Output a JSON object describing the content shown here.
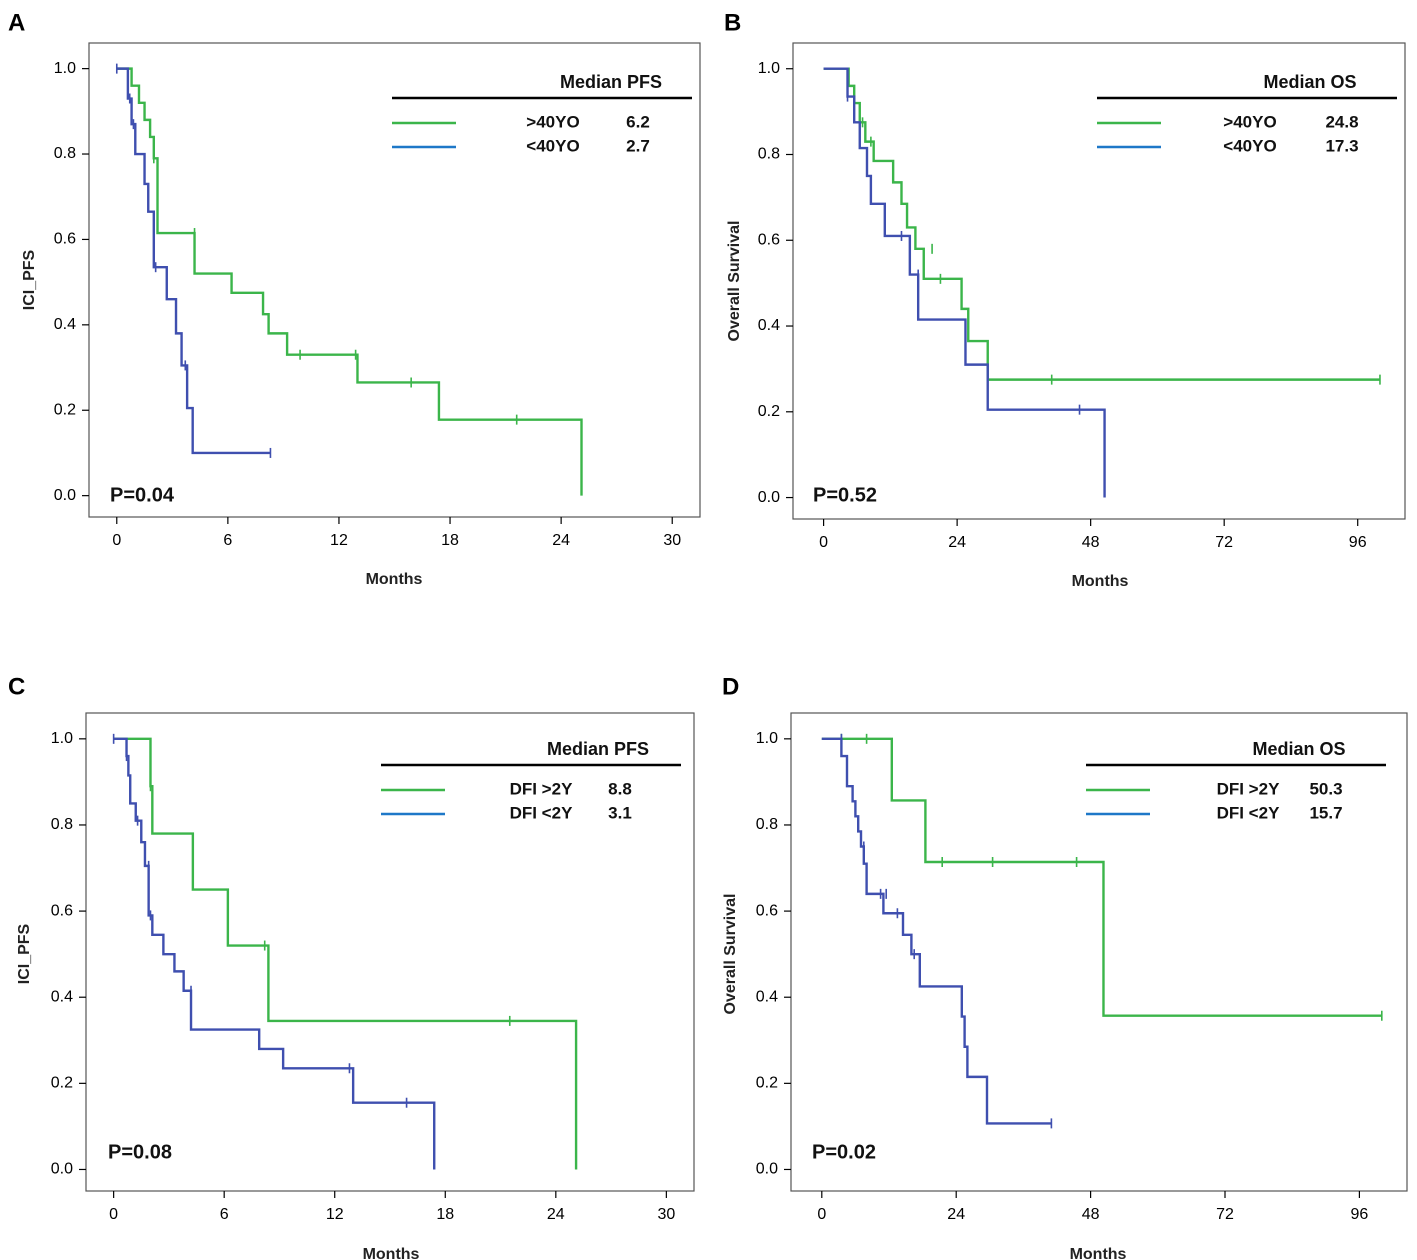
{
  "colors": {
    "group1": "#3BB54A",
    "group2": "#3F4FAF",
    "legend_group2": "#1E78C8",
    "axis": "#000000",
    "frame": "#555555"
  },
  "chart_data": [
    {
      "id": "A",
      "panel_label": "A",
      "type": "line",
      "style": "kaplan-meier step",
      "ylabel": "ICI_PFS",
      "xlabel": "Months",
      "xlim": [
        -1.5,
        31.5
      ],
      "xticks": [
        0,
        6,
        12,
        18,
        24,
        30
      ],
      "ylim": [
        -0.05,
        1.06
      ],
      "yticks": [
        "0.0",
        "0.2",
        "0.4",
        "0.6",
        "0.8",
        "1.0"
      ],
      "legend_title": "Median PFS",
      "pvalue": "P=0.04",
      "series": [
        {
          "name": ">40YO",
          "median": "6.2",
          "color_key": "group1",
          "x": [
            0,
            0.8,
            1.2,
            1.5,
            1.8,
            2.0,
            2.2,
            4.2,
            6.2,
            7.9,
            8.2,
            9.2,
            13.0,
            17.4,
            25.1
          ],
          "y": [
            1.0,
            0.96,
            0.92,
            0.88,
            0.84,
            0.79,
            0.615,
            0.52,
            0.475,
            0.425,
            0.38,
            0.33,
            0.265,
            0.178,
            0.0
          ],
          "censored": [
            [
              2.0,
              0.79
            ],
            [
              4.2,
              0.615
            ],
            [
              9.9,
              0.33
            ],
            [
              12.9,
              0.33
            ],
            [
              15.9,
              0.265
            ],
            [
              21.6,
              0.178
            ]
          ]
        },
        {
          "name": "<40YO",
          "median": "2.7",
          "color_key": "group2",
          "x": [
            0,
            0.6,
            0.8,
            1.0,
            1.5,
            1.7,
            2.0,
            2.7,
            3.2,
            3.5,
            3.8,
            4.1,
            4.2
          ],
          "y": [
            1.0,
            0.93,
            0.87,
            0.8,
            0.73,
            0.665,
            0.535,
            0.46,
            0.38,
            0.305,
            0.205,
            0.1,
            0.1
          ],
          "censored": [
            [
              0,
              1.0
            ],
            [
              0.7,
              0.93
            ],
            [
              0.9,
              0.87
            ],
            [
              2.1,
              0.535
            ],
            [
              3.7,
              0.305
            ],
            [
              8.3,
              0.1
            ]
          ],
          "end": 8.3
        }
      ]
    },
    {
      "id": "B",
      "panel_label": "B",
      "type": "line",
      "style": "kaplan-meier step",
      "ylabel": "Overall Survival",
      "xlabel": "Months",
      "xlim": [
        -5.5,
        104.5
      ],
      "xticks": [
        0,
        24,
        48,
        72,
        96
      ],
      "ylim": [
        -0.05,
        1.06
      ],
      "yticks": [
        "0.0",
        "0.2",
        "0.4",
        "0.6",
        "0.8",
        "1.0"
      ],
      "legend_title": "Median OS",
      "pvalue": "P=0.52",
      "series": [
        {
          "name": ">40YO",
          "median": "24.8",
          "color_key": "group1",
          "x": [
            0,
            4.5,
            5.5,
            6.5,
            7.5,
            9.0,
            12.5,
            14.0,
            15.0,
            16.5,
            18.0,
            24.8,
            26.0,
            29.5
          ],
          "y": [
            1.0,
            0.96,
            0.92,
            0.875,
            0.83,
            0.785,
            0.735,
            0.685,
            0.63,
            0.58,
            0.51,
            0.44,
            0.365,
            0.275
          ],
          "censored": [
            [
              7.0,
              0.875
            ],
            [
              8.5,
              0.83
            ],
            [
              19.5,
              0.58
            ],
            [
              21.0,
              0.51
            ],
            [
              41.0,
              0.275
            ],
            [
              100.0,
              0.275
            ]
          ],
          "end": 100.0
        },
        {
          "name": "<40YO",
          "median": "17.3",
          "color_key": "group2",
          "x": [
            0,
            4.3,
            5.5,
            6.5,
            7.8,
            8.5,
            11.0,
            15.5,
            17.0,
            25.5,
            29.5,
            50.5
          ],
          "y": [
            1.0,
            0.935,
            0.875,
            0.815,
            0.75,
            0.685,
            0.61,
            0.52,
            0.415,
            0.31,
            0.205,
            0.0
          ],
          "censored": [
            [
              4.3,
              0.935
            ],
            [
              14.0,
              0.61
            ],
            [
              17.0,
              0.52
            ],
            [
              46.0,
              0.205
            ]
          ]
        }
      ]
    },
    {
      "id": "C",
      "panel_label": "C",
      "type": "line",
      "style": "kaplan-meier step",
      "ylabel": "ICI_PFS",
      "xlabel": "Months",
      "xlim": [
        -1.5,
        31.5
      ],
      "xticks": [
        0,
        6,
        12,
        18,
        24,
        30
      ],
      "ylim": [
        -0.05,
        1.06
      ],
      "yticks": [
        "0.0",
        "0.2",
        "0.4",
        "0.6",
        "0.8",
        "1.0"
      ],
      "legend_title": "Median PFS",
      "pvalue": "P=0.08",
      "series": [
        {
          "name": "DFI >2Y",
          "median": "8.8",
          "color_key": "group1",
          "x": [
            0,
            2.0,
            2.1,
            4.3,
            6.2,
            8.4,
            25.1
          ],
          "y": [
            1.0,
            0.89,
            0.78,
            0.65,
            0.52,
            0.345,
            0.0
          ],
          "censored": [
            [
              2.0,
              0.89
            ],
            [
              8.2,
              0.52
            ],
            [
              21.5,
              0.345
            ]
          ]
        },
        {
          "name": "DFI <2Y",
          "median": "3.1",
          "color_key": "group2",
          "x": [
            0,
            0.7,
            0.8,
            0.9,
            1.2,
            1.5,
            1.7,
            1.9,
            2.1,
            2.7,
            3.3,
            3.8,
            4.2,
            7.9,
            9.2,
            13.0,
            17.4
          ],
          "y": [
            1.0,
            0.96,
            0.915,
            0.85,
            0.81,
            0.76,
            0.705,
            0.59,
            0.545,
            0.5,
            0.46,
            0.415,
            0.325,
            0.28,
            0.235,
            0.155,
            0.0
          ],
          "censored": [
            [
              0,
              1.0
            ],
            [
              0.7,
              0.96
            ],
            [
              1.3,
              0.81
            ],
            [
              1.9,
              0.705
            ],
            [
              2.0,
              0.59
            ],
            [
              4.2,
              0.415
            ],
            [
              12.8,
              0.235
            ],
            [
              15.9,
              0.155
            ]
          ]
        }
      ]
    },
    {
      "id": "D",
      "panel_label": "D",
      "type": "line",
      "style": "kaplan-meier step",
      "ylabel": "Overall Survival",
      "xlabel": "Months",
      "xlim": [
        -5.5,
        104.5
      ],
      "xticks": [
        0,
        24,
        48,
        72,
        96
      ],
      "ylim": [
        -0.05,
        1.06
      ],
      "yticks": [
        "0.0",
        "0.2",
        "0.4",
        "0.6",
        "0.8",
        "1.0"
      ],
      "legend_title": "Median OS",
      "pvalue": "P=0.02",
      "series": [
        {
          "name": "DFI >2Y",
          "median": "50.3",
          "color_key": "group1",
          "x": [
            0,
            12.5,
            18.5,
            50.3
          ],
          "y": [
            1.0,
            0.857,
            0.714,
            0.357
          ],
          "censored": [
            [
              3.5,
              1.0
            ],
            [
              8.0,
              1.0
            ],
            [
              21.5,
              0.714
            ],
            [
              30.5,
              0.714
            ],
            [
              45.5,
              0.714
            ],
            [
              100.0,
              0.357
            ]
          ],
          "end": 100.0
        },
        {
          "name": "DFI <2Y",
          "median": "15.7",
          "color_key": "group2",
          "x": [
            0,
            3.5,
            4.5,
            5.5,
            6.0,
            6.5,
            7.0,
            7.5,
            8.0,
            10.5,
            11.0,
            12.5,
            14.5,
            16.0,
            17.5,
            25.0,
            25.5,
            26.0,
            29.5
          ],
          "y": [
            1.0,
            0.96,
            0.89,
            0.855,
            0.82,
            0.785,
            0.75,
            0.71,
            0.64,
            0.64,
            0.595,
            0.595,
            0.545,
            0.5,
            0.425,
            0.355,
            0.285,
            0.215,
            0.107
          ],
          "censored": [
            [
              3.5,
              1.0
            ],
            [
              7.5,
              0.75
            ],
            [
              10.5,
              0.64
            ],
            [
              11.5,
              0.64
            ],
            [
              13.5,
              0.595
            ],
            [
              16.5,
              0.5
            ],
            [
              41.0,
              0.107
            ]
          ],
          "end": 41.0
        }
      ]
    }
  ]
}
